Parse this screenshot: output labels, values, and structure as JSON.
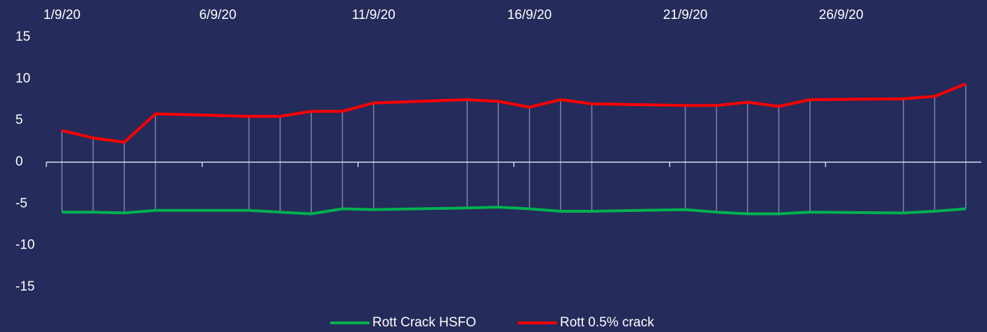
{
  "chart_data": {
    "type": "line",
    "x": [
      "2020-09-01",
      "2020-09-02",
      "2020-09-03",
      "2020-09-04",
      "2020-09-07",
      "2020-09-08",
      "2020-09-09",
      "2020-09-10",
      "2020-09-11",
      "2020-09-14",
      "2020-09-15",
      "2020-09-16",
      "2020-09-17",
      "2020-09-18",
      "2020-09-21",
      "2020-09-22",
      "2020-09-23",
      "2020-09-24",
      "2020-09-25",
      "2020-09-28",
      "2020-09-29",
      "2020-09-30"
    ],
    "series": [
      {
        "name": "Rott Crack HSFO",
        "color": "#00b050",
        "values": [
          -6.0,
          -6.0,
          -6.1,
          -5.8,
          -5.8,
          -6.0,
          -6.2,
          -5.6,
          -5.7,
          -5.5,
          -5.4,
          -5.6,
          -5.9,
          -5.9,
          -5.7,
          -6.0,
          -6.2,
          -6.2,
          -6.0,
          -6.1,
          -5.9,
          -5.6
        ]
      },
      {
        "name": "Rott 0.5% crack",
        "color": "#ff0000",
        "values": [
          3.8,
          2.9,
          2.4,
          5.8,
          5.5,
          5.5,
          6.1,
          6.1,
          7.1,
          7.5,
          7.3,
          6.6,
          7.5,
          7.0,
          6.8,
          6.8,
          7.2,
          6.7,
          7.5,
          7.6,
          7.9,
          9.4
        ]
      }
    ],
    "xlim": [
      "2020-09-01",
      "2020-10-01"
    ],
    "xticks": [
      {
        "value": "2020-09-01",
        "label": "1/9/20"
      },
      {
        "value": "2020-09-06",
        "label": "6/9/20"
      },
      {
        "value": "2020-09-11",
        "label": "11/9/20"
      },
      {
        "value": "2020-09-16",
        "label": "16/9/20"
      },
      {
        "value": "2020-09-21",
        "label": "21/9/20"
      },
      {
        "value": "2020-09-26",
        "label": "26/9/20"
      }
    ],
    "ylim": [
      -15,
      15
    ],
    "yticks": [
      -15,
      -10,
      -5,
      0,
      5,
      10,
      15
    ],
    "high_low_lines": true,
    "legend": "bottom"
  }
}
